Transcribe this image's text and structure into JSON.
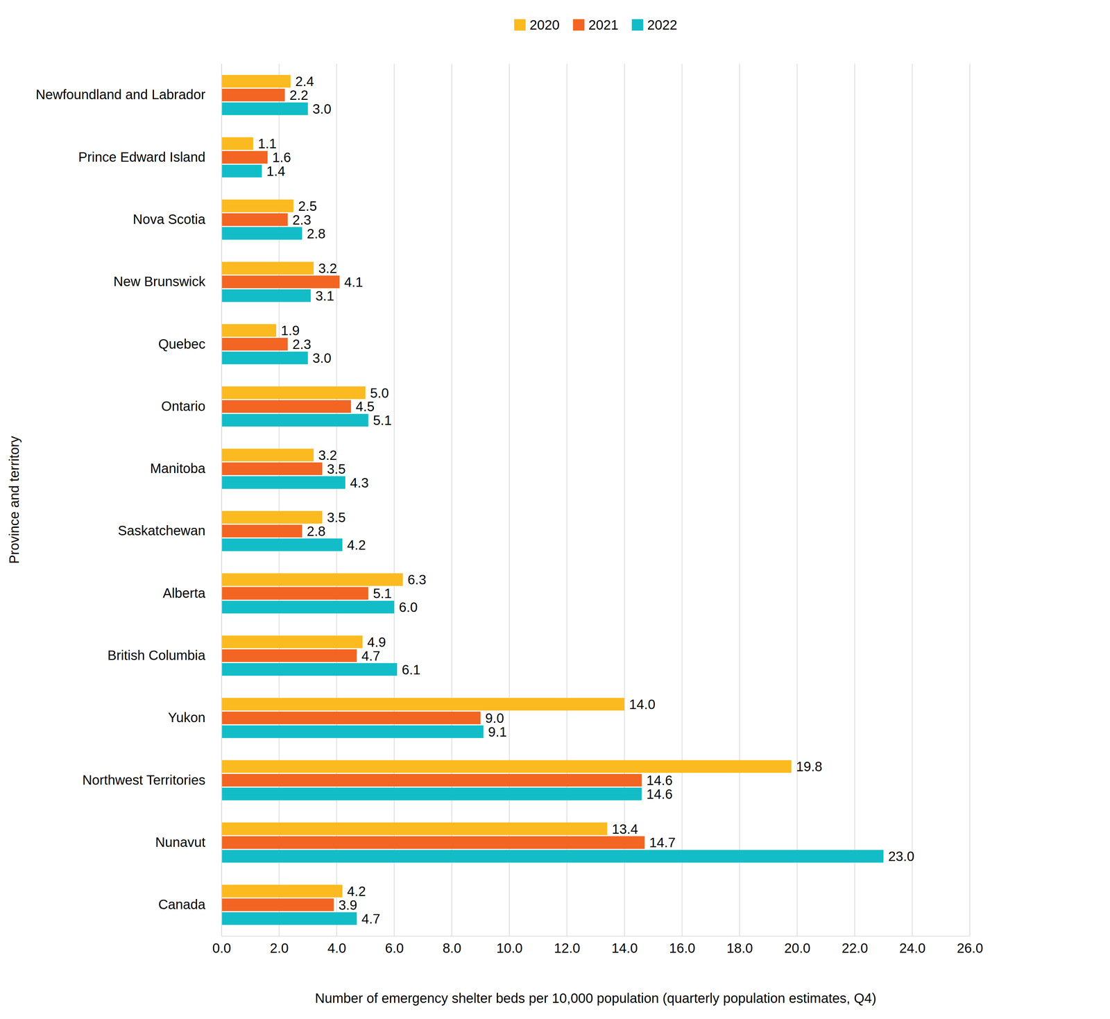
{
  "chart_data": {
    "type": "bar",
    "orientation": "horizontal",
    "x_label": "Number of emergency shelter beds per 10,000 population (quarterly population estimates, Q4)",
    "y_label": "Province and territory",
    "categories": [
      "Newfoundland and Labrador",
      "Prince Edward Island",
      "Nova Scotia",
      "New Brunswick",
      "Quebec",
      "Ontario",
      "Manitoba",
      "Saskatchewan",
      "Alberta",
      "British Columbia",
      "Yukon",
      "Northwest Territories",
      "Nunavut",
      "Canada"
    ],
    "series": [
      {
        "name": "2020",
        "color": "#FBBA1F",
        "values": [
          2.4,
          1.1,
          2.5,
          3.2,
          1.9,
          5.0,
          3.2,
          3.5,
          6.3,
          4.9,
          14.0,
          19.8,
          13.4,
          4.2
        ],
        "value_labels": [
          "2.4",
          "1.1",
          "2.5",
          "3.2",
          "1.9",
          "5.0",
          "3.2",
          "3.5",
          "6.3",
          "4.9",
          "14.0",
          "19.8",
          "13.4",
          "4.2"
        ]
      },
      {
        "name": "2021",
        "color": "#F26522",
        "values": [
          2.2,
          1.6,
          2.3,
          4.1,
          2.3,
          4.5,
          3.5,
          2.8,
          5.1,
          4.7,
          9.0,
          14.6,
          14.7,
          3.9
        ],
        "value_labels": [
          "2.2",
          "1.6",
          "2.3",
          "4.1",
          "2.3",
          "4.5",
          "3.5",
          "2.8",
          "5.1",
          "4.7",
          "9.0",
          "14.6",
          "14.7",
          "3.9"
        ]
      },
      {
        "name": "2022",
        "color": "#12BDC7",
        "values": [
          3.0,
          1.4,
          2.8,
          3.1,
          3.0,
          5.1,
          4.3,
          4.2,
          6.0,
          6.1,
          9.1,
          14.6,
          23.0,
          4.7
        ],
        "value_labels": [
          "3.0",
          "1.4",
          "2.8",
          "3.1",
          "3.0",
          "5.1",
          "4.3",
          "4.2",
          "6.0",
          "6.1",
          "9.1",
          "14.6",
          "23.0",
          "4.7"
        ]
      }
    ],
    "xlim": [
      0,
      26
    ],
    "xticks": [
      {
        "value": 0,
        "label": "0.0"
      },
      {
        "value": 2,
        "label": "2.0"
      },
      {
        "value": 4,
        "label": "4.0"
      },
      {
        "value": 6,
        "label": "6.0"
      },
      {
        "value": 8,
        "label": "8.0"
      },
      {
        "value": 10,
        "label": "10.0"
      },
      {
        "value": 12,
        "label": "12.0"
      },
      {
        "value": 14,
        "label": "14.0"
      },
      {
        "value": 16,
        "label": "16.0"
      },
      {
        "value": 18,
        "label": "18.0"
      },
      {
        "value": 20,
        "label": "20.0"
      },
      {
        "value": 22,
        "label": "22.0"
      },
      {
        "value": 24,
        "label": "24.0"
      },
      {
        "value": 26,
        "label": "26.0"
      }
    ],
    "grid": true,
    "legend": "top",
    "data_labels": true
  }
}
